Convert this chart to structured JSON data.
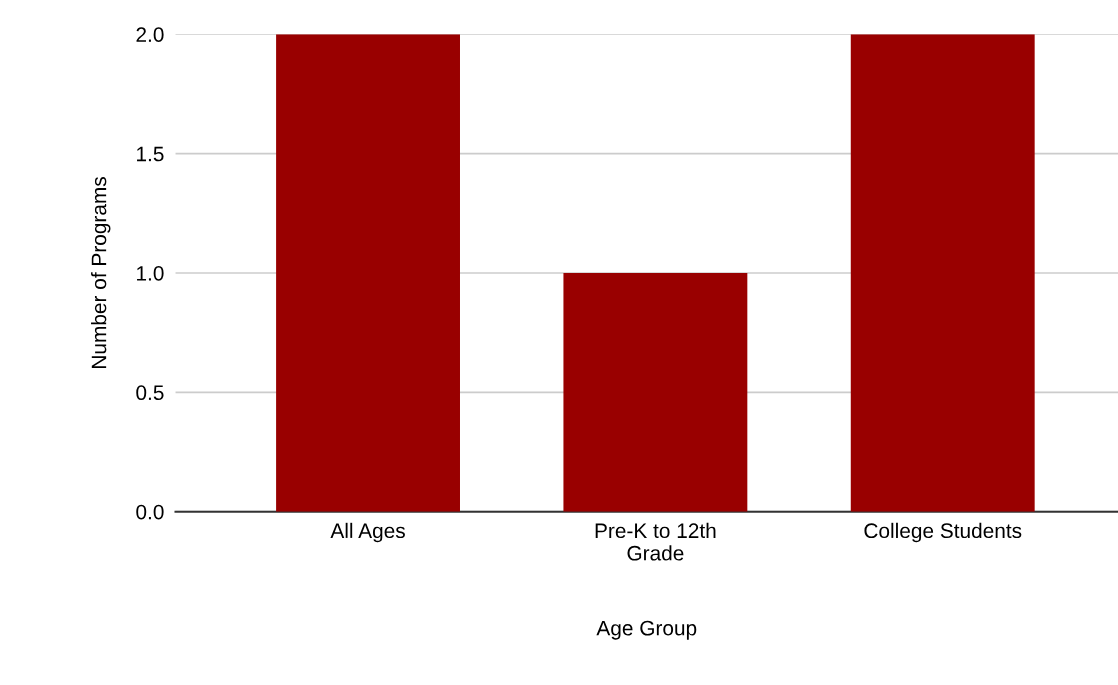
{
  "chart_data": {
    "type": "bar",
    "xlabel": "Age Group",
    "ylabel": "Number of Programs",
    "categories": [
      "All Ages",
      "Pre-K to 12th\nGrade",
      "College Students"
    ],
    "values": [
      2,
      1,
      2
    ],
    "color": "#990000",
    "ylim": [
      0,
      2
    ],
    "yticks": [
      {
        "value": 0,
        "label": "0.0"
      },
      {
        "value": 0.5,
        "label": "0.5"
      },
      {
        "value": 1,
        "label": "1.0"
      },
      {
        "value": 1.5,
        "label": "1.5"
      },
      {
        "value": 2,
        "label": "2.0"
      }
    ],
    "grid": "y",
    "legend": false
  }
}
